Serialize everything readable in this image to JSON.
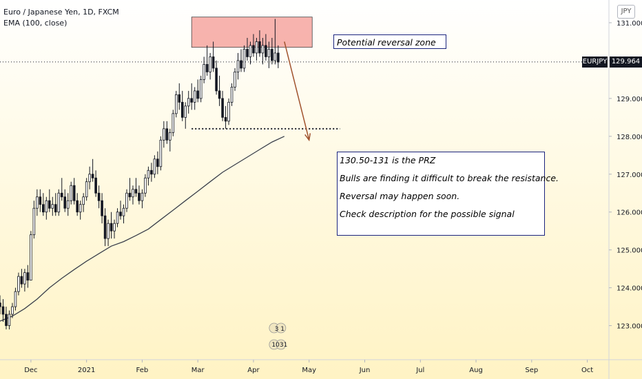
{
  "legend": {
    "symbol_line": "Euro / Japanese Yen, 1D, FXCM",
    "indicator_line": "EMA (100, close)"
  },
  "currency": "JPY",
  "price_tag": {
    "symbol": "EURJPY",
    "value": "129.964"
  },
  "annotations": {
    "zone_label": "Potential reversal zone",
    "notes": [
      "130.50-131 is the PRZ",
      "Bulls are finding it difficult to break the resistance.",
      "Reversal may happen soon.",
      "Check description for the possible signal"
    ]
  },
  "event_badges": [
    "3 1",
    "1031"
  ],
  "colors": {
    "up": "#26a69a",
    "down": "#ef5350",
    "candle": "#131722",
    "ema": "#3a3f4b",
    "zone_fill": "#f6a6a0",
    "arrow": "#a0522d"
  },
  "chart_data": {
    "type": "candlestick",
    "title": "",
    "ylim": [
      122.1,
      131.6
    ],
    "y_ticks": [
      "123.000",
      "124.000",
      "125.000",
      "126.000",
      "127.000",
      "128.000",
      "129.000",
      "130.000",
      "131.000"
    ],
    "x_ticks": [
      {
        "label": "Dec",
        "index": 10
      },
      {
        "label": "2021",
        "index": 28
      },
      {
        "label": "Feb",
        "index": 46
      },
      {
        "label": "Mar",
        "index": 64
      },
      {
        "label": "Apr",
        "index": 82
      },
      {
        "label": "May",
        "index": 100
      },
      {
        "label": "Jun",
        "index": 118
      },
      {
        "label": "Jul",
        "index": 136
      },
      {
        "label": "Aug",
        "index": 154
      },
      {
        "label": "Sep",
        "index": 172
      },
      {
        "label": "Oct",
        "index": 190
      }
    ],
    "x_range": [
      0,
      197
    ],
    "last_price": 129.964,
    "resistance_zone": {
      "start_index": 62,
      "end_index": 101,
      "low": 130.35,
      "high": 131.15
    },
    "support_level": {
      "start_index": 62,
      "end_index": 110,
      "value": 128.2
    },
    "projection": {
      "from_index": 92,
      "from_value": 130.5,
      "to_index": 100,
      "to_value": 127.9
    },
    "ema_100": [
      [
        0,
        123.12
      ],
      [
        4,
        123.25
      ],
      [
        8,
        123.45
      ],
      [
        12,
        123.7
      ],
      [
        16,
        124.0
      ],
      [
        20,
        124.25
      ],
      [
        24,
        124.48
      ],
      [
        28,
        124.7
      ],
      [
        32,
        124.9
      ],
      [
        36,
        125.1
      ],
      [
        40,
        125.22
      ],
      [
        44,
        125.38
      ],
      [
        48,
        125.55
      ],
      [
        52,
        125.8
      ],
      [
        56,
        126.05
      ],
      [
        60,
        126.3
      ],
      [
        64,
        126.55
      ],
      [
        68,
        126.8
      ],
      [
        72,
        127.05
      ],
      [
        76,
        127.25
      ],
      [
        80,
        127.45
      ],
      [
        84,
        127.65
      ],
      [
        88,
        127.85
      ],
      [
        92,
        128.0
      ]
    ],
    "candles": [
      [
        0,
        123.6,
        123.8,
        123.3,
        123.5
      ],
      [
        1,
        123.5,
        123.7,
        123.1,
        123.3
      ],
      [
        2,
        123.3,
        123.5,
        122.9,
        123.0
      ],
      [
        3,
        123.0,
        123.4,
        122.9,
        123.3
      ],
      [
        4,
        123.3,
        123.6,
        123.2,
        123.5
      ],
      [
        5,
        123.5,
        124.0,
        123.4,
        123.9
      ],
      [
        6,
        123.9,
        124.4,
        123.8,
        124.3
      ],
      [
        7,
        124.3,
        124.5,
        124.0,
        124.1
      ],
      [
        8,
        124.1,
        124.5,
        123.9,
        124.4
      ],
      [
        9,
        124.4,
        124.6,
        124.0,
        124.2
      ],
      [
        10,
        124.2,
        125.5,
        124.2,
        125.4
      ],
      [
        11,
        125.4,
        126.3,
        125.3,
        126.1
      ],
      [
        12,
        126.1,
        126.6,
        125.9,
        126.4
      ],
      [
        13,
        126.4,
        126.6,
        126.0,
        126.2
      ],
      [
        14,
        126.2,
        126.5,
        125.9,
        126.0
      ],
      [
        15,
        126.0,
        126.4,
        125.8,
        126.3
      ],
      [
        16,
        126.3,
        126.6,
        126.0,
        126.1
      ],
      [
        17,
        126.1,
        126.4,
        125.9,
        126.2
      ],
      [
        18,
        126.2,
        126.5,
        125.9,
        126.0
      ],
      [
        19,
        126.0,
        126.6,
        125.9,
        126.5
      ],
      [
        20,
        126.5,
        126.9,
        126.3,
        126.4
      ],
      [
        21,
        126.4,
        126.6,
        126.0,
        126.1
      ],
      [
        22,
        126.1,
        126.5,
        125.9,
        126.3
      ],
      [
        23,
        126.3,
        126.8,
        126.2,
        126.7
      ],
      [
        24,
        126.7,
        126.9,
        126.2,
        126.3
      ],
      [
        25,
        126.3,
        126.5,
        125.9,
        126.0
      ],
      [
        26,
        126.0,
        126.3,
        125.8,
        126.2
      ],
      [
        27,
        126.2,
        126.5,
        126.0,
        126.4
      ],
      [
        28,
        126.4,
        126.9,
        126.3,
        126.8
      ],
      [
        29,
        126.8,
        127.2,
        126.6,
        127.0
      ],
      [
        30,
        127.0,
        127.4,
        126.8,
        126.9
      ],
      [
        31,
        126.9,
        127.1,
        126.4,
        126.5
      ],
      [
        32,
        126.5,
        126.7,
        126.1,
        126.3
      ],
      [
        33,
        126.3,
        126.5,
        125.7,
        125.9
      ],
      [
        34,
        125.9,
        126.1,
        125.1,
        125.3
      ],
      [
        35,
        125.3,
        125.8,
        125.1,
        125.7
      ],
      [
        36,
        125.7,
        126.0,
        125.3,
        125.5
      ],
      [
        37,
        125.5,
        125.8,
        125.3,
        125.7
      ],
      [
        38,
        125.7,
        126.1,
        125.6,
        126.0
      ],
      [
        39,
        126.0,
        126.3,
        125.8,
        125.9
      ],
      [
        40,
        125.9,
        126.2,
        125.7,
        126.1
      ],
      [
        41,
        126.1,
        126.6,
        126.0,
        126.5
      ],
      [
        42,
        126.5,
        126.9,
        126.3,
        126.4
      ],
      [
        43,
        126.4,
        126.7,
        126.2,
        126.6
      ],
      [
        44,
        126.6,
        126.9,
        126.4,
        126.5
      ],
      [
        45,
        126.5,
        126.7,
        126.2,
        126.3
      ],
      [
        46,
        126.3,
        126.6,
        126.1,
        126.5
      ],
      [
        47,
        126.5,
        127.0,
        126.4,
        126.9
      ],
      [
        48,
        126.9,
        127.2,
        126.7,
        127.1
      ],
      [
        49,
        127.1,
        127.3,
        126.8,
        127.0
      ],
      [
        50,
        127.0,
        127.5,
        126.9,
        127.4
      ],
      [
        51,
        127.4,
        127.6,
        127.0,
        127.2
      ],
      [
        52,
        127.2,
        128.0,
        127.1,
        127.9
      ],
      [
        53,
        127.9,
        128.4,
        127.7,
        128.2
      ],
      [
        54,
        128.2,
        128.4,
        127.8,
        127.9
      ],
      [
        55,
        127.9,
        128.2,
        127.6,
        128.1
      ],
      [
        56,
        128.1,
        128.7,
        128.0,
        128.6
      ],
      [
        57,
        128.6,
        129.2,
        128.5,
        129.1
      ],
      [
        58,
        129.1,
        129.4,
        128.7,
        128.9
      ],
      [
        59,
        128.9,
        129.2,
        128.4,
        128.5
      ],
      [
        60,
        128.5,
        128.9,
        128.2,
        128.8
      ],
      [
        61,
        128.8,
        129.2,
        128.6,
        129.0
      ],
      [
        62,
        129.0,
        129.4,
        128.7,
        128.9
      ],
      [
        63,
        128.9,
        129.3,
        128.7,
        129.2
      ],
      [
        64,
        129.2,
        129.5,
        128.9,
        129.0
      ],
      [
        65,
        129.0,
        129.6,
        128.9,
        129.5
      ],
      [
        66,
        129.5,
        130.1,
        129.4,
        129.9
      ],
      [
        67,
        129.9,
        130.4,
        129.6,
        129.7
      ],
      [
        68,
        129.7,
        130.2,
        129.5,
        130.1
      ],
      [
        69,
        130.1,
        130.5,
        129.7,
        129.8
      ],
      [
        70,
        129.8,
        130.0,
        129.1,
        129.2
      ],
      [
        71,
        129.2,
        129.6,
        128.8,
        129.0
      ],
      [
        72,
        129.0,
        129.2,
        128.4,
        128.5
      ],
      [
        73,
        128.5,
        128.8,
        128.2,
        128.4
      ],
      [
        74,
        128.4,
        129.0,
        128.3,
        128.9
      ],
      [
        75,
        128.9,
        129.4,
        128.8,
        129.3
      ],
      [
        76,
        129.3,
        129.8,
        129.2,
        129.7
      ],
      [
        77,
        129.7,
        130.2,
        129.5,
        130.0
      ],
      [
        78,
        130.0,
        130.3,
        129.7,
        129.8
      ],
      [
        79,
        129.8,
        130.4,
        129.7,
        130.3
      ],
      [
        80,
        130.3,
        130.6,
        130.0,
        130.1
      ],
      [
        81,
        130.1,
        130.5,
        129.9,
        130.4
      ],
      [
        82,
        130.4,
        130.7,
        130.1,
        130.2
      ],
      [
        83,
        130.2,
        130.6,
        130.0,
        130.5
      ],
      [
        84,
        130.5,
        130.8,
        130.1,
        130.2
      ],
      [
        85,
        130.2,
        130.6,
        129.9,
        130.4
      ],
      [
        86,
        130.4,
        130.7,
        130.0,
        130.1
      ],
      [
        87,
        130.1,
        130.5,
        129.8,
        130.3
      ],
      [
        88,
        130.3,
        130.6,
        129.9,
        130.0
      ],
      [
        89,
        130.0,
        131.1,
        129.9,
        130.2
      ],
      [
        90,
        130.2,
        130.4,
        129.8,
        129.96
      ]
    ]
  }
}
